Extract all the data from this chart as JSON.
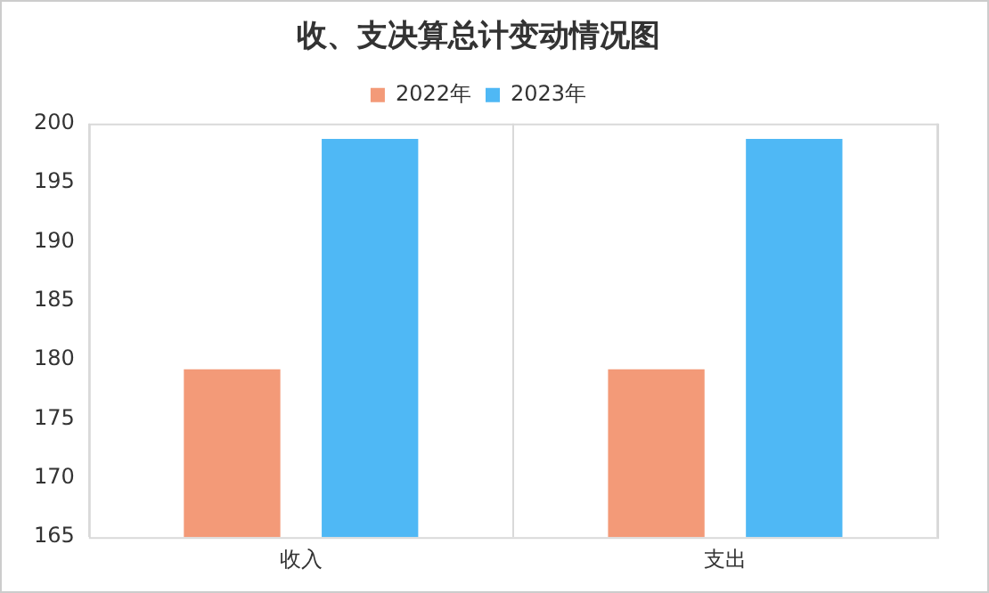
{
  "chart_data": {
    "type": "bar",
    "title": "收、支决算总计变动情况图",
    "categories": [
      "收入",
      "支出"
    ],
    "series": [
      {
        "name": "2022年",
        "color": "#f39a78",
        "values": [
          179.2,
          179.2
        ]
      },
      {
        "name": "2023年",
        "color": "#4fb8f5",
        "values": [
          198.7,
          198.7
        ]
      }
    ],
    "ylim": [
      165,
      200
    ],
    "yticks": [
      165,
      170,
      175,
      180,
      185,
      190,
      195,
      200
    ],
    "grid": "x",
    "legend": "top"
  }
}
